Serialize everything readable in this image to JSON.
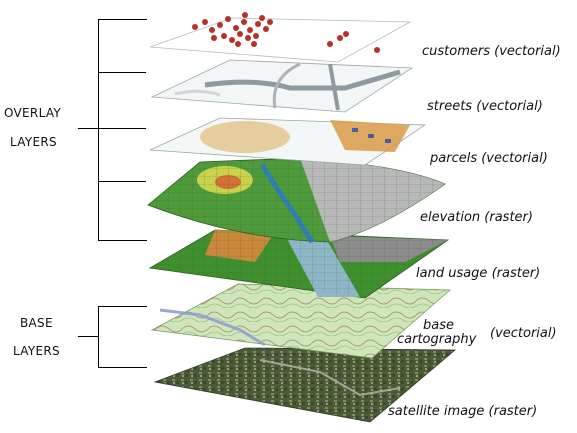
{
  "groups": {
    "overlay": {
      "line1": "OVERLAY",
      "line2": "LAYERS"
    },
    "base": {
      "line1": "BASE",
      "line2": "LAYERS"
    }
  },
  "layers": [
    {
      "id": "customers",
      "label": "customers (vectorial)",
      "color": "#b5322a"
    },
    {
      "id": "streets",
      "label": "streets (vectorial)",
      "color": "#9aa7ad"
    },
    {
      "id": "parcels",
      "label": "parcels (vectorial)",
      "color": "#d9b980"
    },
    {
      "id": "elevation",
      "label": "elevation (raster)",
      "color": "#4f9a3a"
    },
    {
      "id": "land-usage",
      "label": "land usage (raster)",
      "color": "#3e8f2e"
    },
    {
      "id": "base-cartography",
      "label_line1": "base",
      "label_line2": "cartography",
      "label_suffix": "(vectorial)",
      "color": "#a9cf8a"
    },
    {
      "id": "satellite-image",
      "label": "satellite image (raster)",
      "color": "#4d5a3a"
    }
  ]
}
